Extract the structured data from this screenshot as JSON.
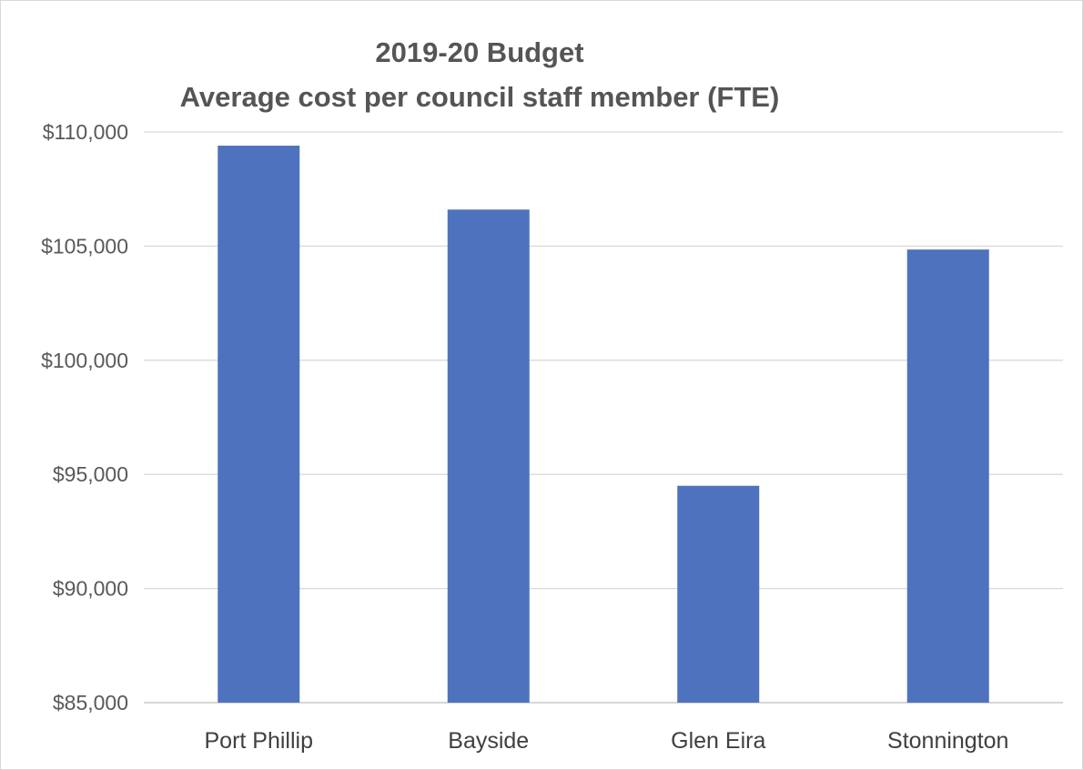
{
  "chart_data": {
    "type": "bar",
    "title": "2019-20 Budget",
    "subtitle": "Average cost per council staff member (FTE)",
    "xlabel": "",
    "ylabel": "",
    "categories": [
      "Port Phillip",
      "Bayside",
      "Glen Eira",
      "Stonnington"
    ],
    "values": [
      109400,
      106600,
      94500,
      104850
    ],
    "ylim": [
      85000,
      110000
    ],
    "yticks": [
      85000,
      90000,
      95000,
      100000,
      105000,
      110000
    ],
    "ytick_labels": [
      "$85,000",
      "$90,000",
      "$95,000",
      "$100,000",
      "$105,000",
      "$110,000"
    ],
    "grid": true,
    "legend": "none",
    "bar_color": "#4e72be"
  }
}
